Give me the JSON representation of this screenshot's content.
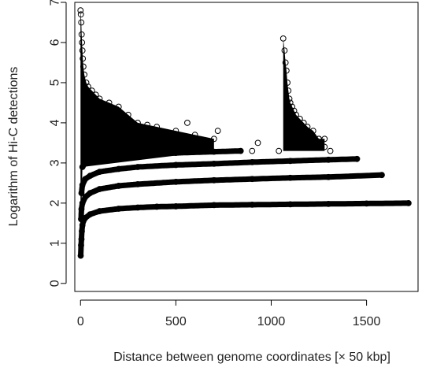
{
  "chart_data": {
    "type": "scatter",
    "title": "",
    "xlabel": "Distance between genome coordinates [× 50 kbp]",
    "ylabel": "Logarithm of Hi-C detections",
    "xlim": [
      -30,
      1770
    ],
    "ylim": [
      -0.2,
      7.0
    ],
    "x_ticks": [
      0,
      500,
      1000,
      1500
    ],
    "y_ticks": [
      0,
      1,
      2,
      3,
      4,
      5,
      6,
      7
    ],
    "grid": false,
    "legend": "none",
    "marker": "open-circle",
    "point_color": "#000000",
    "series": [
      {
        "x": [
          1,
          3,
          5,
          7,
          10,
          15,
          25,
          50,
          100,
          200,
          300,
          400,
          500,
          700,
          900,
          1100,
          1300,
          1500,
          1720
        ],
        "y": [
          0.69,
          0.95,
          1.1,
          1.3,
          1.45,
          1.55,
          1.63,
          1.72,
          1.8,
          1.86,
          1.89,
          1.91,
          1.92,
          1.95,
          1.96,
          1.97,
          1.98,
          1.99,
          2.0
        ]
      },
      {
        "x": [
          3,
          5,
          10,
          25,
          50,
          100,
          200,
          300,
          500,
          700,
          900,
          1100,
          1300,
          1580
        ],
        "y": [
          1.6,
          1.85,
          2.0,
          2.15,
          2.25,
          2.35,
          2.43,
          2.47,
          2.53,
          2.57,
          2.6,
          2.63,
          2.65,
          2.7
        ]
      },
      {
        "x": [
          5,
          10,
          25,
          50,
          100,
          200,
          300,
          500,
          700,
          900,
          1100,
          1300,
          1450
        ],
        "y": [
          2.25,
          2.45,
          2.6,
          2.68,
          2.78,
          2.85,
          2.9,
          2.95,
          2.98,
          3.02,
          3.05,
          3.08,
          3.1
        ]
      },
      {
        "x": [
          10,
          25,
          50,
          100,
          200,
          300,
          500,
          700,
          840
        ],
        "y": [
          2.9,
          3.0,
          3.05,
          3.1,
          3.17,
          3.2,
          3.25,
          3.28,
          3.3
        ]
      },
      {
        "x": [
          0,
          2,
          4,
          6,
          8,
          10,
          12,
          15,
          20,
          30,
          40,
          60,
          80,
          100,
          150,
          200,
          250,
          300,
          350,
          400,
          500,
          600,
          700
        ],
        "y": [
          6.8,
          6.7,
          6.5,
          6.2,
          6.0,
          5.8,
          5.6,
          5.4,
          5.2,
          5.0,
          4.9,
          4.8,
          4.7,
          4.6,
          4.5,
          4.4,
          4.2,
          4.0,
          3.95,
          3.9,
          3.8,
          3.7,
          3.6
        ]
      },
      {
        "x": [
          1063,
          1070,
          1075,
          1080,
          1085,
          1090,
          1095,
          1100,
          1110,
          1120,
          1130,
          1150,
          1170,
          1190,
          1220,
          1250,
          1280
        ],
        "y": [
          6.1,
          5.8,
          5.5,
          5.3,
          5.0,
          4.8,
          4.6,
          4.5,
          4.4,
          4.3,
          4.2,
          4.1,
          4.0,
          3.9,
          3.8,
          3.6,
          3.6
        ]
      },
      {
        "x": [
          560,
          720,
          900,
          930,
          1040,
          1230,
          1250,
          1280,
          1310
        ],
        "y": [
          4.0,
          3.8,
          3.3,
          3.5,
          3.3,
          3.5,
          3.6,
          3.4,
          3.3
        ]
      }
    ]
  }
}
